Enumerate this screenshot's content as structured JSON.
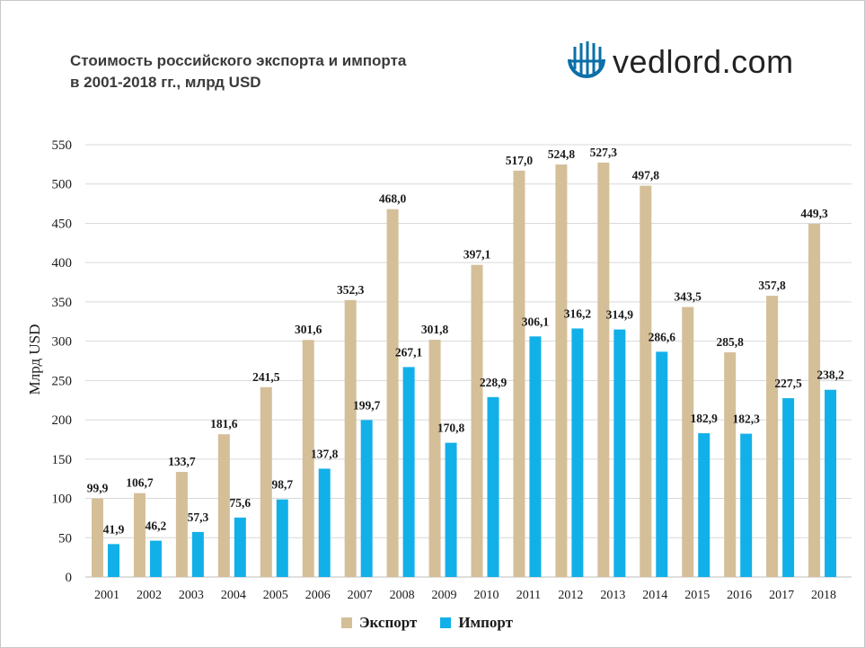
{
  "page": {
    "title_line1": "Стоимость российского экспорта и импорта",
    "title_line2": "в 2001-2018 гг., млрд USD",
    "brand": "vedlord.com",
    "brand_icon": "globe-icon",
    "colors": {
      "export": "#d4bf98",
      "import": "#12b0e8",
      "grid": "#d9d9d9",
      "text": "#1a1a1a"
    }
  },
  "chart_data": {
    "type": "bar",
    "title": "Стоимость российского экспорта и импорта в 2001-2018 гг., млрд USD",
    "ylabel": "Млрд USD",
    "xlabel": "",
    "ylim": [
      0,
      550
    ],
    "yticks": [
      "0",
      "50",
      "100",
      "150",
      "200",
      "250",
      "300",
      "350",
      "400",
      "450",
      "500",
      "550"
    ],
    "grid": true,
    "legend_position": "bottom",
    "categories": [
      "2001",
      "2002",
      "2003",
      "2004",
      "2005",
      "2006",
      "2007",
      "2008",
      "2009",
      "2010",
      "2011",
      "2012",
      "2013",
      "2014",
      "2015",
      "2016",
      "2017",
      "2018"
    ],
    "series": [
      {
        "name": "Экспорт",
        "color": "#d4bf98",
        "values": [
          99.9,
          106.7,
          133.7,
          181.6,
          241.5,
          301.6,
          352.3,
          468.0,
          301.8,
          397.1,
          517.0,
          524.8,
          527.3,
          497.8,
          343.5,
          285.8,
          357.8,
          449.3
        ],
        "labels": [
          "99,9",
          "106,7",
          "133,7",
          "181,6",
          "241,5",
          "301,6",
          "352,3",
          "468,0",
          "301,8",
          "397,1",
          "517,0",
          "524,8",
          "527,3",
          "497,8",
          "343,5",
          "285,8",
          "357,8",
          "449,3"
        ]
      },
      {
        "name": "Импорт",
        "color": "#12b0e8",
        "values": [
          41.9,
          46.2,
          57.3,
          75.6,
          98.7,
          137.8,
          199.7,
          267.1,
          170.8,
          228.9,
          306.1,
          316.2,
          314.9,
          286.6,
          182.9,
          182.3,
          227.5,
          238.2
        ],
        "labels": [
          "41,9",
          "46,2",
          "57,3",
          "75,6",
          "98,7",
          "137,8",
          "199,7",
          "267,1",
          "170,8",
          "228,9",
          "306,1",
          "316,2",
          "314,9",
          "286,6",
          "182,9",
          "182,3",
          "227,5",
          "238,2"
        ]
      }
    ]
  }
}
